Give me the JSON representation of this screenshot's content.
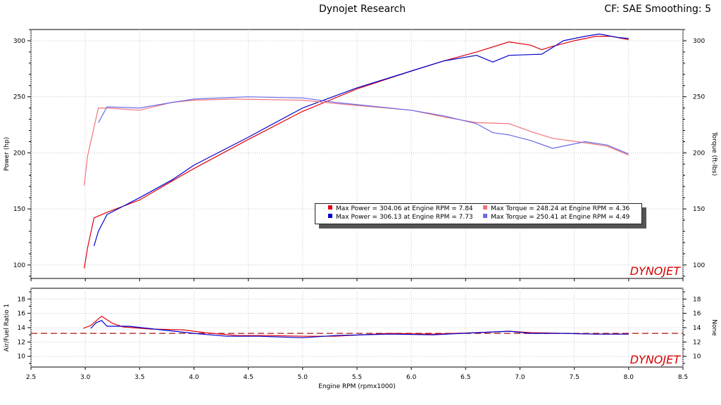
{
  "header": {
    "title": "Dynojet Research",
    "correction": "CF: SAE Smoothing: 5"
  },
  "legend": [
    {
      "label": "Max Power = 304.06 at Engine RPM = 7.84",
      "color": "#e0000d"
    },
    {
      "label": "Max Torque = 248.24 at Engine RPM = 4.36",
      "color": "#f2747b"
    },
    {
      "label": "Max Power = 306.13 at Engine RPM = 7.73",
      "color": "#0000d0"
    },
    {
      "label": "Max Torque = 250.41 at Engine RPM = 4.49",
      "color": "#6a6ae8"
    }
  ],
  "watermark": "DYNOJET",
  "chart_data": [
    {
      "type": "line",
      "ylabel": "Power (hp)",
      "y2label": "Torque (ft-lbs)",
      "ylim": [
        88,
        310
      ],
      "yticks": [
        100,
        150,
        200,
        250,
        300
      ],
      "xlim": [
        2.5,
        8.5
      ],
      "grid": true,
      "legend_position": "center-right",
      "series": [
        {
          "color": "#e0000d",
          "x": [
            2.99,
            3.02,
            3.08,
            3.2,
            3.5,
            3.8,
            4.0,
            4.5,
            5.0,
            5.5,
            6.0,
            6.3,
            6.6,
            6.9,
            7.1,
            7.2,
            7.3,
            7.5,
            7.7,
            7.84,
            8.0
          ],
          "y": [
            97,
            115,
            142,
            147,
            158,
            175,
            186,
            212,
            237,
            257,
            273,
            282,
            290,
            299,
            296,
            292,
            295,
            300,
            304,
            304,
            301
          ]
        },
        {
          "color": "#0000d0",
          "x": [
            3.08,
            3.12,
            3.2,
            3.5,
            3.8,
            4.0,
            4.5,
            5.0,
            5.5,
            6.0,
            6.3,
            6.6,
            6.75,
            6.9,
            7.2,
            7.4,
            7.6,
            7.73,
            7.9,
            8.0
          ],
          "y": [
            117,
            130,
            145,
            160,
            176,
            189,
            214,
            240,
            258,
            273,
            282,
            287,
            281,
            287,
            288,
            300,
            304,
            306,
            303,
            302
          ]
        },
        {
          "color": "#f2747b",
          "x": [
            2.99,
            3.02,
            3.12,
            3.2,
            3.5,
            3.8,
            4.0,
            4.36,
            5.0,
            5.3,
            6.0,
            6.3,
            6.6,
            6.9,
            7.1,
            7.3,
            7.6,
            7.8,
            8.0
          ],
          "y": [
            171,
            197,
            240,
            240,
            238,
            245,
            247,
            248,
            247,
            244,
            238,
            232,
            227,
            226,
            219,
            213,
            209,
            206,
            198
          ]
        },
        {
          "color": "#6a6ae8",
          "x": [
            3.12,
            3.2,
            3.5,
            3.8,
            4.0,
            4.49,
            5.0,
            5.3,
            6.0,
            6.3,
            6.6,
            6.75,
            6.9,
            7.1,
            7.3,
            7.6,
            7.8,
            8.0
          ],
          "y": [
            227,
            241,
            240,
            245,
            248,
            250,
            249,
            245,
            238,
            233,
            226,
            218,
            216,
            211,
            204,
            210,
            207,
            199
          ]
        }
      ]
    },
    {
      "type": "line",
      "ylabel": "Air/Fuel Ratio 1",
      "y2label": "None",
      "ylim": [
        8.5,
        19.5
      ],
      "yticks": [
        10,
        12,
        14,
        16,
        18
      ],
      "xlabel": "Engine RPM (rpmx1000)",
      "xlim": [
        2.5,
        8.5
      ],
      "xticks": [
        "2.5",
        "3.0",
        "3.5",
        "4.0",
        "4.5",
        "5.0",
        "5.5",
        "6.0",
        "6.5",
        "7.0",
        "7.5",
        "8.0",
        "8.5"
      ],
      "reference_line": 13.2,
      "reference_color": "#aa1111",
      "grid": true,
      "series": [
        {
          "color": "#e0000d",
          "x": [
            2.98,
            3.05,
            3.15,
            3.25,
            3.35,
            3.6,
            3.9,
            4.1,
            4.4,
            4.7,
            5.0,
            5.3,
            5.8,
            6.2,
            6.6,
            6.9,
            7.1,
            7.4,
            7.7,
            8.0
          ],
          "y": [
            13.9,
            14.3,
            15.6,
            14.6,
            14.1,
            13.8,
            13.7,
            13.3,
            12.9,
            12.9,
            12.8,
            12.8,
            13.2,
            13.1,
            13.3,
            13.5,
            13.3,
            13.2,
            13.1,
            13.1
          ]
        },
        {
          "color": "#0000d0",
          "x": [
            3.05,
            3.1,
            3.15,
            3.2,
            3.3,
            3.4,
            3.7,
            4.0,
            4.3,
            4.6,
            5.0,
            5.3,
            5.8,
            6.2,
            6.6,
            6.9,
            7.1,
            7.4,
            7.7,
            8.0
          ],
          "y": [
            13.9,
            14.7,
            15.0,
            14.2,
            14.2,
            14.2,
            13.7,
            13.2,
            12.8,
            12.8,
            12.6,
            12.9,
            13.1,
            13.0,
            13.3,
            13.5,
            13.2,
            13.2,
            13.1,
            13.1
          ]
        }
      ]
    }
  ]
}
